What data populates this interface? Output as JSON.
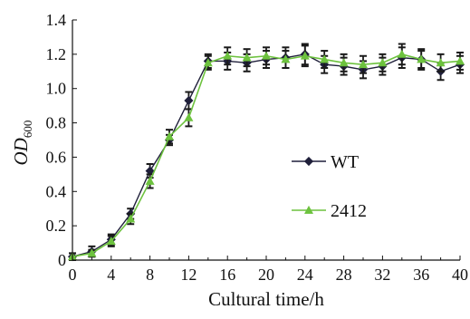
{
  "chart_data": {
    "type": "line",
    "title": "",
    "xlabel": "Cultural time/h",
    "ylabel_main": "OD",
    "ylabel_sub": "600",
    "xlim": [
      0,
      40
    ],
    "ylim": [
      0,
      1.4
    ],
    "x_ticks": [
      0,
      4,
      8,
      12,
      16,
      20,
      24,
      28,
      32,
      36,
      40
    ],
    "y_ticks": [
      0,
      0.2,
      0.4,
      0.6,
      0.8,
      1.0,
      1.2,
      1.4
    ],
    "y_tick_labels": [
      "0",
      "0.2",
      "0.4",
      "0.6",
      "0.8",
      "1.0",
      "1.2",
      "1.4"
    ],
    "x": [
      0,
      2,
      4,
      6,
      8,
      10,
      12,
      14,
      16,
      18,
      20,
      22,
      24,
      26,
      28,
      30,
      32,
      34,
      36,
      38,
      40
    ],
    "grid": false,
    "legend_position": "right",
    "series": [
      {
        "name": "WT",
        "color": "#1f1f3a",
        "marker": "diamond",
        "values": [
          0.02,
          0.05,
          0.12,
          0.27,
          0.52,
          0.7,
          0.93,
          1.16,
          1.16,
          1.15,
          1.17,
          1.18,
          1.2,
          1.14,
          1.13,
          1.11,
          1.13,
          1.18,
          1.17,
          1.1,
          1.14
        ],
        "errors": [
          0.02,
          0.03,
          0.03,
          0.03,
          0.04,
          0.03,
          0.05,
          0.04,
          0.05,
          0.05,
          0.05,
          0.06,
          0.06,
          0.05,
          0.05,
          0.05,
          0.05,
          0.06,
          0.06,
          0.05,
          0.05
        ]
      },
      {
        "name": "2412",
        "color": "#6dc23e",
        "marker": "triangle",
        "values": [
          0.02,
          0.04,
          0.11,
          0.24,
          0.46,
          0.72,
          0.83,
          1.15,
          1.19,
          1.18,
          1.19,
          1.17,
          1.19,
          1.17,
          1.15,
          1.14,
          1.15,
          1.2,
          1.17,
          1.15,
          1.16
        ],
        "errors": [
          0.02,
          0.02,
          0.03,
          0.03,
          0.04,
          0.04,
          0.05,
          0.04,
          0.05,
          0.05,
          0.05,
          0.05,
          0.06,
          0.05,
          0.05,
          0.05,
          0.05,
          0.06,
          0.05,
          0.05,
          0.05
        ]
      }
    ]
  }
}
